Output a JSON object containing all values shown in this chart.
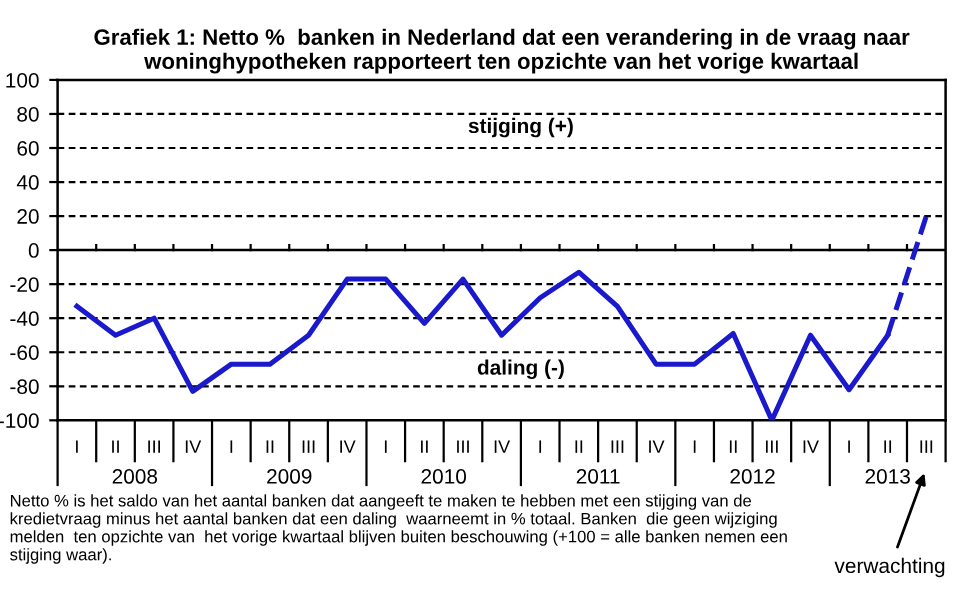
{
  "chart_data": {
    "type": "line",
    "title": "Grafiek 1: Netto %  banken in Nederland dat een verandering in de vraag naar\nwoninghypotheken rapporteert ten opzichte van het vorige kwartaal",
    "categories": [
      "I",
      "II",
      "III",
      "IV",
      "I",
      "II",
      "III",
      "IV",
      "I",
      "II",
      "III",
      "IV",
      "I",
      "II",
      "III",
      "IV",
      "I",
      "II",
      "III",
      "IV",
      "I",
      "II",
      "III"
    ],
    "series": [
      {
        "color": "#1a1acc",
        "line_style": "solid",
        "values": [
          -33,
          -50,
          -40,
          -83,
          -67,
          -67,
          -50,
          -17,
          -17,
          -43,
          -17,
          -50,
          -28,
          -13,
          -33,
          -67,
          -67,
          -49,
          -100,
          -50,
          -82,
          -50,
          null
        ]
      },
      {
        "color": "#1a1acc",
        "line_style": "dashed",
        "values": [
          null,
          null,
          null,
          null,
          null,
          null,
          null,
          null,
          null,
          null,
          null,
          null,
          null,
          null,
          null,
          null,
          null,
          null,
          null,
          null,
          null,
          -50,
          20
        ]
      }
    ],
    "ylim": [
      -100,
      100
    ],
    "yticks": [
      -100,
      -80,
      -60,
      -40,
      -20,
      0,
      20,
      40,
      60,
      80,
      100
    ],
    "grid": "y",
    "annotations": [
      "2008",
      "2009",
      "2010",
      "2011",
      "2012",
      "2013",
      "stijging (+)",
      "daling (-)",
      "verwachting",
      "Netto % is het saldo van het aantal banken dat aangeeft te maken te hebben met een stijging van de kredietvraag minus het aantal banken dat een daling  waarneemt in % totaal. Banken  die geen wijziging melden  ten opzichte van  het vorige kwartaal blijven buiten beschouwing (+100 = alle banken nemen een stijging waar)."
    ]
  }
}
